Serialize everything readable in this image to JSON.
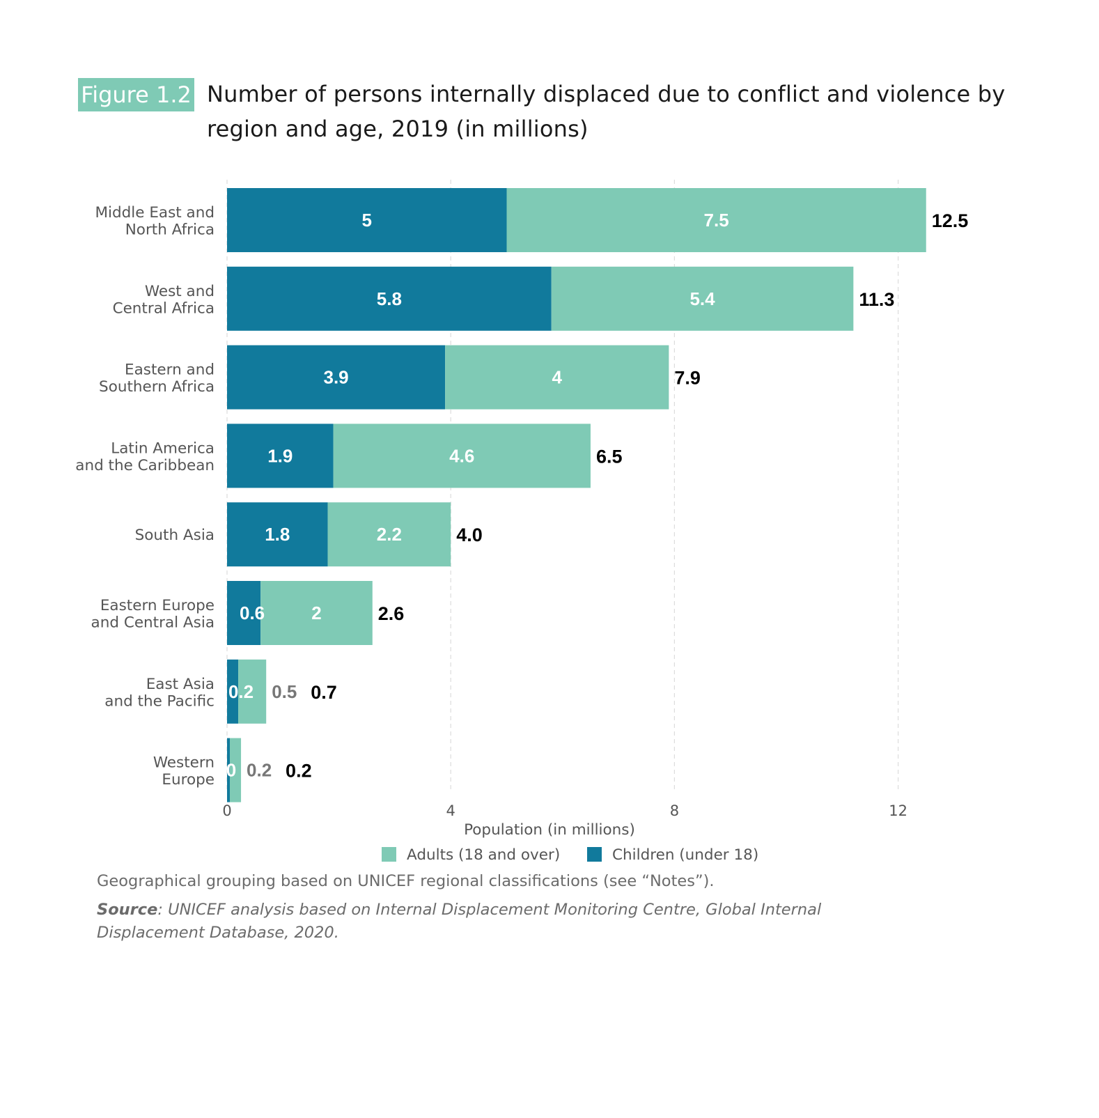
{
  "header": {
    "badge": "Figure 1.2",
    "title": "Number of persons internally displaced due to conflict and violence by region and age, 2019 (in millions)"
  },
  "chart_data": {
    "type": "bar",
    "orientation": "horizontal",
    "stacked": true,
    "categories": [
      [
        "Middle East and",
        "North Africa"
      ],
      [
        "West and",
        "Central Africa"
      ],
      [
        "Eastern and",
        "Southern Africa"
      ],
      [
        "Latin America",
        "and the Caribbean"
      ],
      [
        "South Asia"
      ],
      [
        "Eastern Europe",
        "and Central Asia"
      ],
      [
        "East Asia",
        "and the Pacific"
      ],
      [
        "Western",
        "Europe"
      ]
    ],
    "series": [
      {
        "name": "Children (under 18)",
        "color": "#117a9c",
        "values": [
          5,
          5.8,
          3.9,
          1.9,
          1.8,
          0.6,
          0.2,
          0
        ],
        "labels": [
          "5",
          "5.8",
          "3.9",
          "1.9",
          "1.8",
          "0.6",
          "0.2",
          "0"
        ]
      },
      {
        "name": "Adults (18 and over)",
        "color": "#7fcab5",
        "values": [
          7.5,
          5.4,
          4,
          4.6,
          2.2,
          2,
          0.5,
          0.2
        ],
        "labels": [
          "7.5",
          "5.4",
          "4",
          "4.6",
          "2.2",
          "2",
          "0.5",
          "0.2"
        ]
      }
    ],
    "totals": [
      12.5,
      11.3,
      7.9,
      6.5,
      4.0,
      2.6,
      0.7,
      0.2
    ],
    "total_labels": [
      "12.5",
      "11.3",
      "7.9",
      "6.5",
      "4.0",
      "2.6",
      "0.7",
      "0.2"
    ],
    "xlabel": "Population (in millions)",
    "xlim": [
      0,
      14.6
    ],
    "xticks": [
      0,
      4,
      8,
      12
    ],
    "xtick_labels": [
      "0",
      "4",
      "8",
      "12"
    ],
    "grid": "vertical dashed",
    "legend": {
      "position": "bottom",
      "order": [
        "Adults (18 and over)",
        "Children (under 18)"
      ]
    }
  },
  "footer": {
    "note": "Geographical grouping based on UNICEF regional classifications (see “Notes”).",
    "source_label": "Source",
    "source_text": ": UNICEF analysis based on Internal Displacement Monitoring Centre, Global Internal Displacement Database, 2020."
  }
}
